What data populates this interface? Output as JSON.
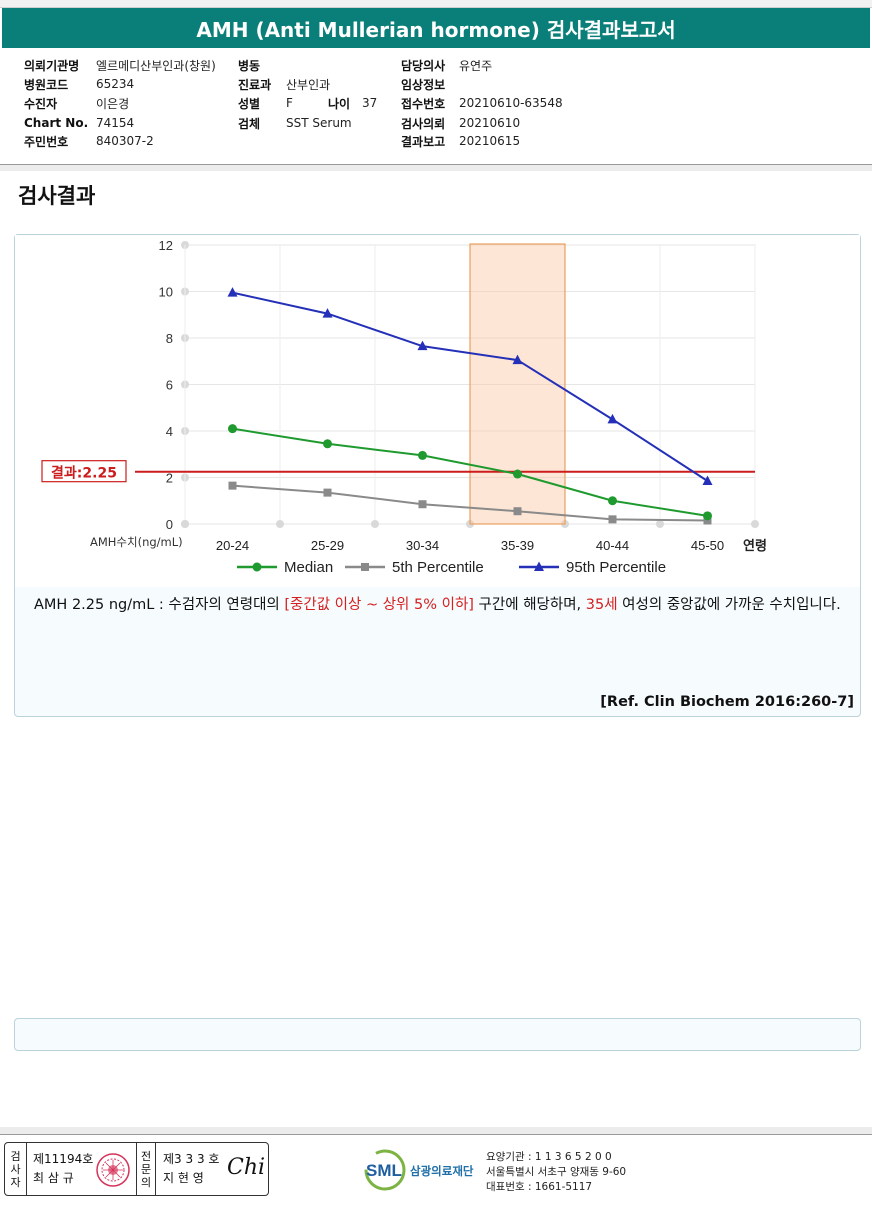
{
  "report": {
    "title": "AMH (Anti Mullerian hormone) 검사결과보고서"
  },
  "info": {
    "col1": [
      {
        "label": "의뢰기관명",
        "value": "엘르메디산부인과(창원)"
      },
      {
        "label": "병원코드",
        "value": "65234"
      },
      {
        "label": "수진자",
        "value": "이은경"
      },
      {
        "label": "Chart No.",
        "value": "74154"
      },
      {
        "label": "주민번호",
        "value": "840307-2"
      }
    ],
    "col2": [
      {
        "label": "병동",
        "value": ""
      },
      {
        "label": "진료과",
        "value": "산부인과"
      },
      {
        "label": "성별",
        "value": "F"
      },
      {
        "label": "검체",
        "value": "SST Serum"
      }
    ],
    "age": {
      "label": "나이",
      "value": "37"
    },
    "col3": [
      {
        "label": "담당의사",
        "value": "유연주"
      },
      {
        "label": "임상정보",
        "value": ""
      },
      {
        "label": "접수번호",
        "value": "20210610-63548"
      },
      {
        "label": "검사의뢰",
        "value": "20210610"
      },
      {
        "label": "결과보고",
        "value": "20210615"
      }
    ]
  },
  "section_title": "검사결과",
  "chart_data": {
    "type": "line",
    "categories": [
      "20-24",
      "25-29",
      "30-34",
      "35-39",
      "40-44",
      "45-50"
    ],
    "x_axis_suffix": "연령",
    "ylabel": "AMH수치(ng/mL)",
    "ylim": [
      0,
      12
    ],
    "yticks": [
      "0",
      "2",
      "4",
      "6",
      "8",
      "10",
      "12"
    ],
    "series": [
      {
        "name": "Median",
        "color": "#1f9a2e",
        "marker": "circle",
        "values": [
          4.1,
          3.45,
          2.95,
          2.15,
          1.0,
          0.35
        ]
      },
      {
        "name": "5th Percentile",
        "color": "#8a8a8a",
        "marker": "square",
        "values": [
          1.65,
          1.35,
          0.85,
          0.55,
          0.2,
          0.15
        ]
      },
      {
        "name": "95th Percentile",
        "color": "#2430b8",
        "marker": "triangle",
        "values": [
          9.95,
          9.05,
          7.65,
          7.05,
          4.5,
          1.85
        ]
      }
    ],
    "highlight_category": "35-39",
    "result_line": {
      "value": 2.25,
      "label": "결과:2.25",
      "color": "#cc1d1d"
    },
    "legend_position": "bottom"
  },
  "description": {
    "part1": "AMH  2.25 ng/mL : 수검자의 연령대의 ",
    "highlight1": "[중간값 이상 ~ 상위 5% 이하]",
    "part2": "  구간에 해당하며, ",
    "highlight2": "35세",
    "part3": " 여성의 중앙값에 가까운 수치입니다."
  },
  "reference": "[Ref. Clin Biochem 2016:260-7]",
  "footer": {
    "inspector_label": [
      "검",
      "사",
      "자"
    ],
    "inspector_no": "제11194호",
    "inspector_name": "최 삼 규",
    "specialist_label": [
      "전",
      "문",
      "의"
    ],
    "specialist_no": "제3 3 3 호",
    "specialist_name": "지 현 영",
    "signature": "Chi",
    "logo_text": "SML",
    "org_name": "삼광의료재단",
    "org_lines": [
      "요양기관 : 1 1 3 6 5 2 0 0",
      "서울특별시 서초구 양재동 9-60",
      "대표번호 : 1661-5117"
    ]
  }
}
